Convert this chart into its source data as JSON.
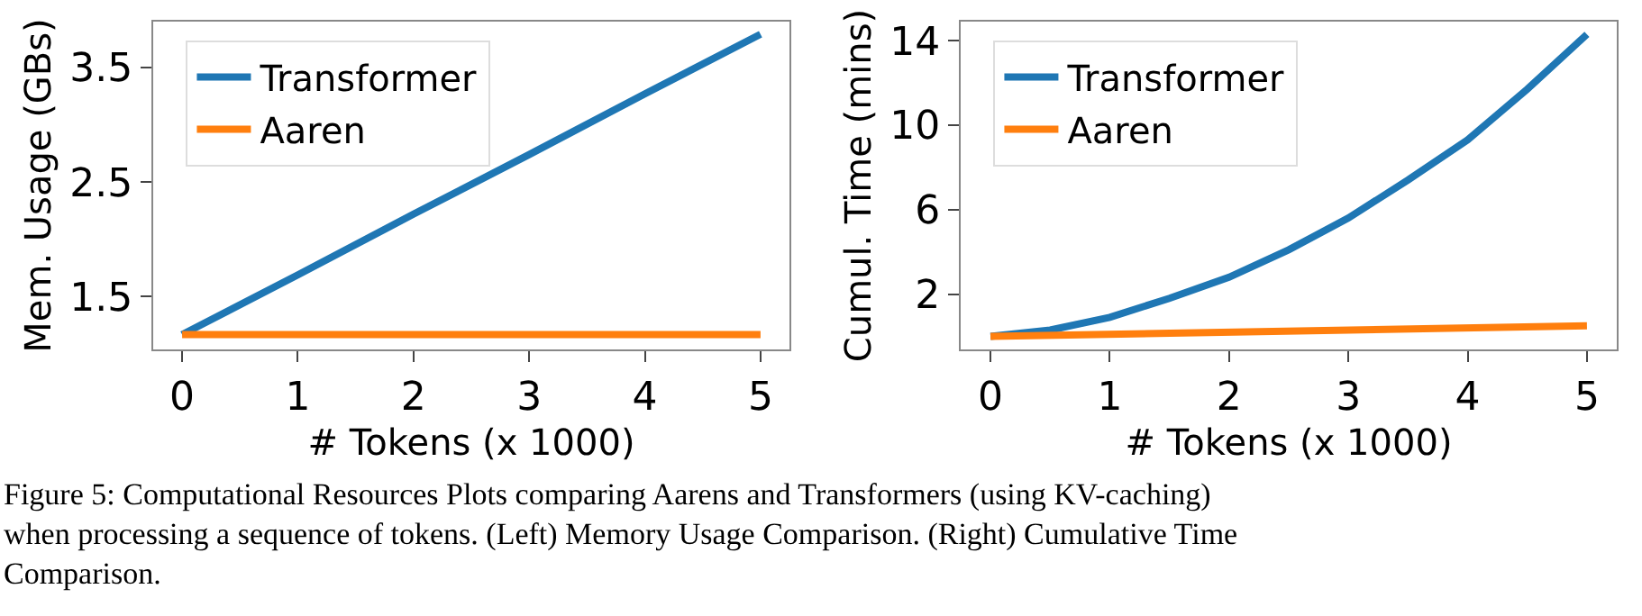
{
  "chart_data": [
    {
      "type": "line",
      "xlabel": "# Tokens (x 1000)",
      "ylabel": "Mem. Usage (GBs)",
      "x": [
        0,
        1,
        2,
        3,
        4,
        5
      ],
      "series": [
        {
          "name": "Transformer",
          "color": "#1f77b4",
          "values": [
            1.17,
            1.69,
            2.22,
            2.74,
            3.27,
            3.79
          ]
        },
        {
          "name": "Aaren",
          "color": "#ff7f0e",
          "values": [
            1.17,
            1.17,
            1.17,
            1.17,
            1.17,
            1.17
          ]
        }
      ],
      "xlim": [
        -0.25,
        5.25
      ],
      "ylim": [
        1.04,
        3.9
      ],
      "xticks": [
        0,
        1,
        2,
        3,
        4,
        5
      ],
      "yticks": [
        1.5,
        2.5,
        3.5
      ],
      "legend": "top left",
      "marker": "none",
      "line_style": "solid",
      "annotations": [
        "Figure 5: Computational Resources Plots comparing Aarens and Transformers (using KV-caching) when processing a sequence of tokens. (Left) Memory Usage Comparison. (Right) Cumulative Time Comparison."
      ]
    },
    {
      "type": "line",
      "xlabel": "# Tokens (x 1000)",
      "ylabel": "Cumul. Time (mins)",
      "x": [
        0,
        0.5,
        1,
        1.5,
        2,
        2.5,
        3,
        3.5,
        4,
        4.5,
        5
      ],
      "series": [
        {
          "name": "Transformer",
          "color": "#1f77b4",
          "values": [
            0,
            0.3,
            0.9,
            1.8,
            2.8,
            4.1,
            5.6,
            7.4,
            9.3,
            11.7,
            14.3
          ]
        },
        {
          "name": "Aaren",
          "color": "#ff7f0e",
          "x": [
            0,
            5
          ],
          "values": [
            0,
            0.5
          ]
        }
      ],
      "xlim": [
        -0.25,
        5.25
      ],
      "ylim": [
        -0.62,
        14.9
      ],
      "xticks": [
        0,
        1,
        2,
        3,
        4,
        5
      ],
      "yticks": [
        2,
        6,
        10,
        14
      ],
      "legend": "top left",
      "marker": "none",
      "line_style": "solid"
    }
  ]
}
